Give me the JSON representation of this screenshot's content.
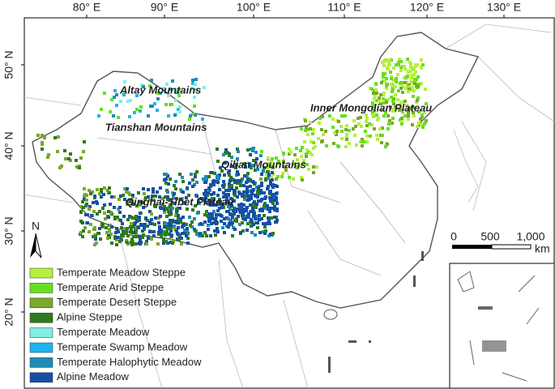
{
  "axes": {
    "top_ticks": [
      "80° E",
      "90° E",
      "100° E",
      "110° E",
      "120° E",
      "130° E"
    ],
    "left_ticks": [
      "50° N",
      "40° N",
      "30° N",
      "20° N"
    ]
  },
  "regions": [
    "Altay Mountains",
    "Tianshan Mountains",
    "Inner Mongolian Plateau",
    "Qilian Mountains",
    "Qinghai-Tibet Plateau"
  ],
  "legend": [
    {
      "label": "Temperate Meadow Steppe",
      "color": "#b4f03c"
    },
    {
      "label": "Temperate Arid Steppe",
      "color": "#66e01e"
    },
    {
      "label": "Temperate Desert Steppe",
      "color": "#7aa82a"
    },
    {
      "label": "Alpine Steppe",
      "color": "#2f7a1e"
    },
    {
      "label": "Temperate Meadow",
      "color": "#7ef0e0"
    },
    {
      "label": "Temperate Swamp Meadow",
      "color": "#1eb4f0"
    },
    {
      "label": "Temperate Halophytic Meadow",
      "color": "#1e8cb4"
    },
    {
      "label": "Alpine Meadow",
      "color": "#1450a8"
    }
  ],
  "scale_bar": {
    "labels": [
      "0",
      "500",
      "1,000"
    ],
    "unit": "km"
  },
  "north_arrow": "N"
}
